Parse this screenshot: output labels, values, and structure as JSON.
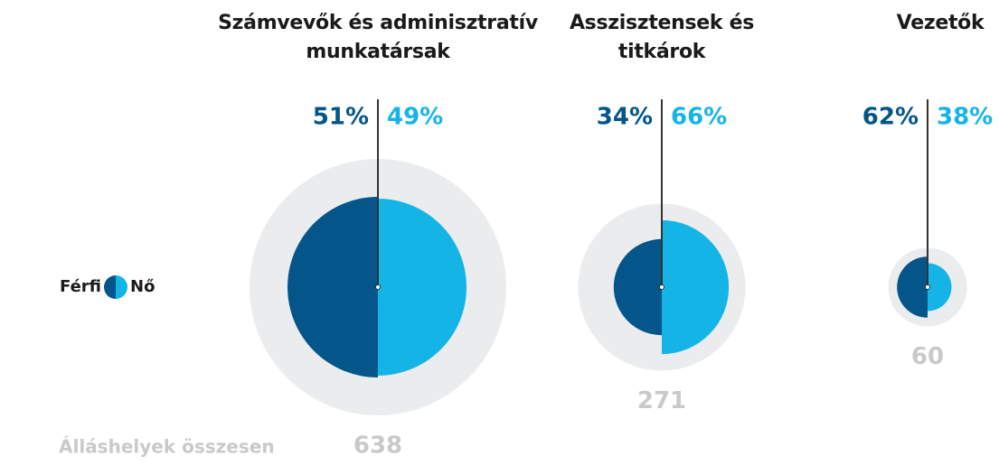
{
  "chart_data": {
    "type": "split-bubble",
    "categories": [
      "Számvevők és adminisztratív munkatársak",
      "Asszisztensek és titkárok",
      "Vezetők"
    ],
    "series": [
      {
        "name": "Férfi",
        "color": "#03558a",
        "values": [
          51,
          34,
          62
        ],
        "value_labels": [
          "51%",
          "34%",
          "62%"
        ]
      },
      {
        "name": "Nő",
        "color": "#15b4e6",
        "values": [
          49,
          66,
          38
        ],
        "value_labels": [
          "49%",
          "66%",
          "38%"
        ]
      }
    ],
    "totals": [
      638,
      271,
      60
    ],
    "total_label": "Álláshelyek összesen",
    "total_color": "#c8c9cb",
    "outer_color": "#ebecee"
  }
}
